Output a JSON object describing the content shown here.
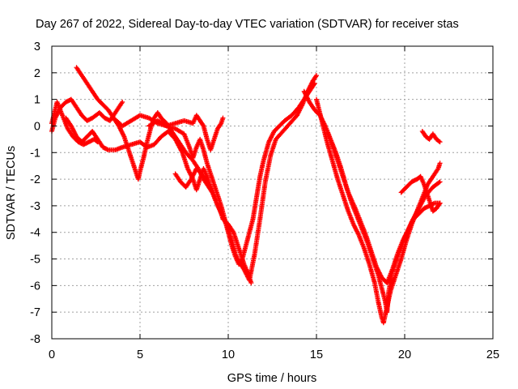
{
  "chart_data": {
    "type": "scatter",
    "title": "Day 267 of 2022, Sidereal Day-to-day VTEC variation (SDTVAR) for receiver stas",
    "xlabel": "GPS time / hours",
    "ylabel": "SDTVAR / TECUs",
    "xlim": [
      0,
      25
    ],
    "ylim": [
      -8,
      3
    ],
    "xticks": [
      0,
      5,
      10,
      15,
      20,
      25
    ],
    "yticks": [
      3,
      2,
      1,
      0,
      -1,
      -2,
      -3,
      -4,
      -5,
      -6,
      -7,
      -8
    ],
    "grid": true,
    "marker": "+",
    "series_color": "#ff0000",
    "series": [
      {
        "name": "trace-1",
        "points": [
          [
            0.0,
            0.1
          ],
          [
            0.3,
            0.9
          ],
          [
            0.6,
            0.4
          ],
          [
            0.9,
            -0.1
          ],
          [
            1.2,
            -0.4
          ],
          [
            1.5,
            -0.6
          ],
          [
            1.8,
            -0.7
          ],
          [
            2.1,
            -0.6
          ],
          [
            2.4,
            -0.5
          ],
          [
            2.6,
            -0.6
          ]
        ]
      },
      {
        "name": "trace-2",
        "points": [
          [
            0.0,
            -0.2
          ],
          [
            0.2,
            0.3
          ],
          [
            0.5,
            0.7
          ],
          [
            0.8,
            0.9
          ],
          [
            1.1,
            1.0
          ],
          [
            1.4,
            0.7
          ],
          [
            1.7,
            0.4
          ],
          [
            2.0,
            0.2
          ],
          [
            2.3,
            0.3
          ],
          [
            2.7,
            0.5
          ],
          [
            3.0,
            0.3
          ],
          [
            3.3,
            0.2
          ],
          [
            3.6,
            0.5
          ],
          [
            4.0,
            0.9
          ]
        ]
      },
      {
        "name": "trace-3",
        "points": [
          [
            1.4,
            2.2
          ],
          [
            1.7,
            1.9
          ],
          [
            2.0,
            1.6
          ],
          [
            2.3,
            1.3
          ],
          [
            2.6,
            1.0
          ],
          [
            2.9,
            0.8
          ],
          [
            3.2,
            0.6
          ],
          [
            3.5,
            0.3
          ],
          [
            3.8,
            0.0
          ],
          [
            4.1,
            -0.4
          ],
          [
            4.3,
            -0.8
          ],
          [
            4.5,
            -1.2
          ],
          [
            4.7,
            -1.6
          ],
          [
            4.9,
            -2.0
          ],
          [
            5.0,
            -1.7
          ],
          [
            5.2,
            -1.2
          ],
          [
            5.4,
            -0.6
          ],
          [
            5.6,
            -0.1
          ],
          [
            5.8,
            0.3
          ],
          [
            6.0,
            0.5
          ],
          [
            6.2,
            0.3
          ],
          [
            6.5,
            0.1
          ],
          [
            6.8,
            -0.2
          ],
          [
            7.2,
            -0.6
          ],
          [
            7.6,
            -1.0
          ],
          [
            8.0,
            -1.3
          ],
          [
            8.3,
            -1.6
          ],
          [
            8.6,
            -2.0
          ],
          [
            8.9,
            -2.3
          ],
          [
            9.1,
            -2.5
          ]
        ]
      },
      {
        "name": "trace-4",
        "points": [
          [
            0.8,
            0.3
          ],
          [
            1.1,
            0.0
          ],
          [
            1.4,
            -0.4
          ],
          [
            1.7,
            -0.6
          ],
          [
            2.0,
            -0.4
          ],
          [
            2.3,
            -0.2
          ],
          [
            2.6,
            -0.5
          ],
          [
            2.9,
            -0.8
          ],
          [
            3.2,
            -0.9
          ],
          [
            3.6,
            -0.9
          ],
          [
            4.0,
            -0.8
          ],
          [
            4.5,
            -0.7
          ],
          [
            5.0,
            -0.6
          ],
          [
            5.4,
            -0.8
          ],
          [
            5.8,
            -0.7
          ],
          [
            6.2,
            -0.4
          ],
          [
            6.6,
            -0.2
          ],
          [
            7.0,
            -0.5
          ],
          [
            7.4,
            -1.0
          ],
          [
            7.7,
            -1.6
          ],
          [
            8.0,
            -2.0
          ],
          [
            8.2,
            -2.4
          ],
          [
            8.4,
            -2.0
          ],
          [
            8.6,
            -1.6
          ],
          [
            8.8,
            -1.9
          ],
          [
            9.0,
            -2.3
          ],
          [
            9.3,
            -2.8
          ],
          [
            9.5,
            -3.1
          ],
          [
            9.7,
            -3.5
          ],
          [
            10.0,
            -3.7
          ],
          [
            10.3,
            -4.0
          ],
          [
            10.6,
            -4.6
          ],
          [
            10.9,
            -5.2
          ],
          [
            11.1,
            -5.5
          ],
          [
            11.3,
            -5.9
          ]
        ]
      },
      {
        "name": "trace-5",
        "points": [
          [
            3.5,
            0.3
          ],
          [
            4.0,
            0.0
          ],
          [
            4.5,
            0.2
          ],
          [
            5.0,
            0.4
          ],
          [
            5.5,
            0.3
          ],
          [
            6.0,
            0.1
          ],
          [
            6.5,
            0.0
          ],
          [
            7.0,
            -0.1
          ],
          [
            7.5,
            -0.3
          ],
          [
            7.8,
            -0.8
          ],
          [
            8.0,
            -1.2
          ],
          [
            8.2,
            -0.8
          ],
          [
            8.4,
            -0.5
          ],
          [
            8.6,
            -0.9
          ],
          [
            8.8,
            -1.4
          ],
          [
            9.0,
            -1.8
          ],
          [
            9.2,
            -2.2
          ],
          [
            9.4,
            -2.6
          ],
          [
            9.6,
            -3.0
          ],
          [
            9.8,
            -3.5
          ],
          [
            10.0,
            -4.0
          ],
          [
            10.2,
            -4.5
          ],
          [
            10.4,
            -4.9
          ],
          [
            10.6,
            -5.2
          ],
          [
            10.8,
            -5.0
          ],
          [
            11.0,
            -4.5
          ],
          [
            11.2,
            -4.0
          ],
          [
            11.4,
            -3.5
          ],
          [
            11.6,
            -2.7
          ],
          [
            11.8,
            -1.9
          ],
          [
            12.0,
            -1.3
          ],
          [
            12.3,
            -0.6
          ],
          [
            12.6,
            -0.2
          ],
          [
            12.9,
            0.0
          ],
          [
            13.2,
            0.2
          ],
          [
            13.6,
            0.4
          ],
          [
            14.0,
            0.7
          ],
          [
            14.3,
            1.0
          ],
          [
            14.5,
            1.2
          ],
          [
            14.7,
            1.4
          ],
          [
            14.9,
            1.6
          ]
        ]
      },
      {
        "name": "trace-6",
        "points": [
          [
            5.5,
            0.0
          ],
          [
            6.0,
            0.2
          ],
          [
            6.5,
            0.0
          ],
          [
            7.0,
            0.1
          ],
          [
            7.5,
            0.2
          ],
          [
            8.0,
            0.1
          ],
          [
            8.2,
            0.4
          ],
          [
            8.4,
            0.2
          ],
          [
            8.6,
            0.0
          ],
          [
            8.8,
            -0.5
          ],
          [
            9.0,
            -0.9
          ],
          [
            9.2,
            -0.5
          ],
          [
            9.4,
            -0.1
          ],
          [
            9.6,
            0.1
          ],
          [
            9.7,
            0.3
          ]
        ]
      },
      {
        "name": "trace-7",
        "points": [
          [
            7.0,
            -1.8
          ],
          [
            7.3,
            -2.1
          ],
          [
            7.6,
            -2.3
          ],
          [
            7.9,
            -2.0
          ],
          [
            8.2,
            -1.6
          ],
          [
            8.5,
            -1.8
          ],
          [
            8.8,
            -2.1
          ],
          [
            9.1,
            -2.5
          ],
          [
            9.4,
            -3.0
          ],
          [
            9.7,
            -3.4
          ],
          [
            10.0,
            -3.9
          ],
          [
            10.2,
            -4.3
          ],
          [
            10.4,
            -4.8
          ],
          [
            10.6,
            -5.1
          ],
          [
            10.9,
            -5.4
          ],
          [
            11.2,
            -5.8
          ],
          [
            11.5,
            -4.8
          ],
          [
            11.8,
            -3.5
          ],
          [
            12.1,
            -2.1
          ],
          [
            12.4,
            -1.1
          ],
          [
            12.7,
            -0.5
          ],
          [
            13.1,
            -0.2
          ],
          [
            13.5,
            0.1
          ],
          [
            13.9,
            0.4
          ],
          [
            14.2,
            0.8
          ],
          [
            14.5,
            1.3
          ],
          [
            14.8,
            1.7
          ],
          [
            15.0,
            1.9
          ]
        ]
      },
      {
        "name": "trace-8",
        "points": [
          [
            14.3,
            1.3
          ],
          [
            14.6,
            0.9
          ],
          [
            14.9,
            0.6
          ],
          [
            15.2,
            0.4
          ],
          [
            15.5,
            0.0
          ],
          [
            15.8,
            -0.5
          ],
          [
            16.1,
            -1.0
          ],
          [
            16.4,
            -1.6
          ],
          [
            16.7,
            -2.3
          ],
          [
            17.0,
            -2.9
          ],
          [
            17.3,
            -3.4
          ],
          [
            17.6,
            -3.9
          ],
          [
            17.9,
            -4.4
          ],
          [
            18.2,
            -5.0
          ],
          [
            18.5,
            -5.6
          ],
          [
            18.7,
            -6.1
          ],
          [
            18.9,
            -6.6
          ],
          [
            19.0,
            -7.0
          ],
          [
            19.1,
            -6.2
          ],
          [
            19.3,
            -5.5
          ],
          [
            19.6,
            -4.9
          ],
          [
            20.0,
            -4.2
          ],
          [
            20.4,
            -3.6
          ],
          [
            20.8,
            -3.1
          ],
          [
            21.2,
            -2.6
          ],
          [
            21.6,
            -2.3
          ],
          [
            22.0,
            -2.1
          ]
        ]
      },
      {
        "name": "trace-9",
        "points": [
          [
            15.0,
            1.0
          ],
          [
            15.3,
            0.2
          ],
          [
            15.6,
            -0.6
          ],
          [
            15.9,
            -1.3
          ],
          [
            16.2,
            -2.0
          ],
          [
            16.5,
            -2.6
          ],
          [
            16.8,
            -3.2
          ],
          [
            17.1,
            -3.7
          ],
          [
            17.4,
            -4.1
          ],
          [
            17.7,
            -4.6
          ],
          [
            18.0,
            -5.2
          ],
          [
            18.3,
            -5.9
          ],
          [
            18.5,
            -6.6
          ],
          [
            18.7,
            -7.2
          ],
          [
            18.8,
            -7.4
          ],
          [
            19.0,
            -6.8
          ],
          [
            19.2,
            -6.2
          ],
          [
            19.5,
            -5.6
          ],
          [
            19.8,
            -5.0
          ],
          [
            20.1,
            -4.3
          ],
          [
            20.4,
            -3.7
          ],
          [
            20.7,
            -3.2
          ],
          [
            21.0,
            -2.7
          ],
          [
            21.3,
            -2.2
          ],
          [
            21.6,
            -1.9
          ],
          [
            21.9,
            -1.6
          ],
          [
            22.0,
            -1.4
          ]
        ]
      },
      {
        "name": "trace-10",
        "points": [
          [
            15.6,
            -0.2
          ],
          [
            16.0,
            -0.9
          ],
          [
            16.4,
            -1.7
          ],
          [
            16.8,
            -2.5
          ],
          [
            17.2,
            -3.1
          ],
          [
            17.5,
            -3.6
          ],
          [
            17.8,
            -4.1
          ],
          [
            18.1,
            -4.7
          ],
          [
            18.4,
            -5.3
          ],
          [
            18.7,
            -5.7
          ],
          [
            19.0,
            -5.9
          ],
          [
            19.3,
            -5.4
          ],
          [
            19.6,
            -4.8
          ],
          [
            19.9,
            -4.3
          ],
          [
            20.2,
            -3.9
          ],
          [
            20.5,
            -3.5
          ],
          [
            20.8,
            -3.3
          ],
          [
            21.1,
            -3.1
          ],
          [
            21.4,
            -3.0
          ],
          [
            21.7,
            -2.9
          ],
          [
            22.0,
            -2.9
          ]
        ]
      },
      {
        "name": "trace-11",
        "points": [
          [
            19.8,
            -2.5
          ],
          [
            20.1,
            -2.3
          ],
          [
            20.4,
            -2.1
          ],
          [
            20.7,
            -2.0
          ],
          [
            20.9,
            -1.9
          ],
          [
            21.1,
            -2.2
          ],
          [
            21.4,
            -2.8
          ],
          [
            21.6,
            -3.2
          ],
          [
            21.8,
            -3.1
          ],
          [
            22.0,
            -2.9
          ]
        ]
      },
      {
        "name": "trace-12",
        "points": [
          [
            21.0,
            -0.2
          ],
          [
            21.2,
            -0.4
          ],
          [
            21.4,
            -0.5
          ],
          [
            21.6,
            -0.3
          ],
          [
            21.8,
            -0.5
          ],
          [
            22.0,
            -0.6
          ]
        ]
      }
    ]
  }
}
